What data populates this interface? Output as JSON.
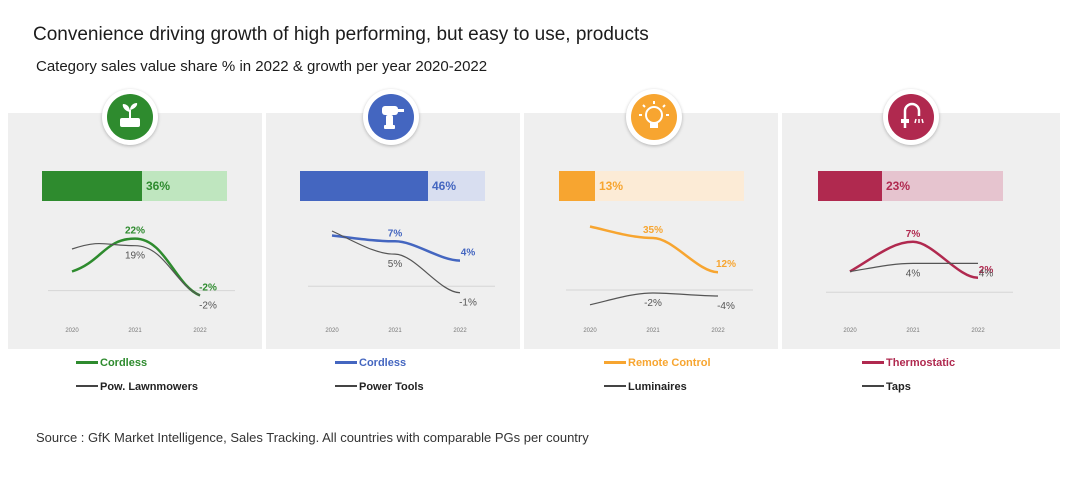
{
  "title": "Convenience driving growth of high performing, but easy to use, products",
  "subtitle": "Category sales value share % in 2022 & growth per year 2020-2022",
  "source": "Source : GfK Market Intelligence, Sales Tracking. All countries with comparable PGs per country",
  "panels": [
    {
      "icon": "plant-sprout-icon",
      "color": "#2e8b2e",
      "light": "#bfe6bf",
      "share_value": 36,
      "share_label": "36%",
      "legend_primary": "Cordless",
      "legend_secondary": "Pow. Lawnmowers"
    },
    {
      "icon": "power-drill-icon",
      "color": "#4466c0",
      "light": "#d8def0",
      "share_value": 46,
      "share_label": "46%",
      "legend_primary": "Cordless",
      "legend_secondary": "Power Tools"
    },
    {
      "icon": "led-bulb-icon",
      "color": "#f7a530",
      "light": "#fcebd6",
      "share_value": 13,
      "share_label": "13%",
      "legend_primary": "Remote Control",
      "legend_secondary": "Luminaires"
    },
    {
      "icon": "shower-tap-icon",
      "color": "#b0294f",
      "light": "#e6c4cf",
      "share_value": 23,
      "share_label": "23%",
      "legend_primary": "Thermostatic",
      "legend_secondary": "Taps"
    }
  ],
  "chart_data": [
    {
      "type": "line",
      "categories": [
        "2020",
        "2021",
        "2022"
      ],
      "series": [
        {
          "name": "Cordless",
          "values": [
            null,
            22,
            -2
          ]
        },
        {
          "name": "Pow. Lawnmowers",
          "values": [
            null,
            19,
            -2
          ]
        }
      ],
      "data_labels": [
        [
          "22%",
          "-2%"
        ],
        [
          "19%",
          "-2%"
        ]
      ]
    },
    {
      "type": "line",
      "categories": [
        "2020",
        "2021",
        "2022"
      ],
      "series": [
        {
          "name": "Cordless",
          "values": [
            null,
            7,
            4
          ]
        },
        {
          "name": "Power Tools",
          "values": [
            null,
            5,
            -1
          ]
        }
      ],
      "data_labels": [
        [
          "7%",
          "4%"
        ],
        [
          "5%",
          "-1%"
        ]
      ]
    },
    {
      "type": "line",
      "categories": [
        "2020",
        "2021",
        "2022"
      ],
      "series": [
        {
          "name": "Remote Control",
          "values": [
            null,
            35,
            12
          ]
        },
        {
          "name": "Luminaires",
          "values": [
            null,
            -2,
            -4
          ]
        }
      ],
      "data_labels": [
        [
          "35%",
          "12%"
        ],
        [
          "-2%",
          "-4%"
        ]
      ]
    },
    {
      "type": "line",
      "categories": [
        "2020",
        "2021",
        "2022"
      ],
      "series": [
        {
          "name": "Thermostatic",
          "values": [
            null,
            7,
            2
          ]
        },
        {
          "name": "Taps",
          "values": [
            null,
            4,
            4
          ]
        }
      ],
      "data_labels": [
        [
          "7%",
          "2%"
        ],
        [
          "4%",
          "4%"
        ]
      ]
    }
  ]
}
